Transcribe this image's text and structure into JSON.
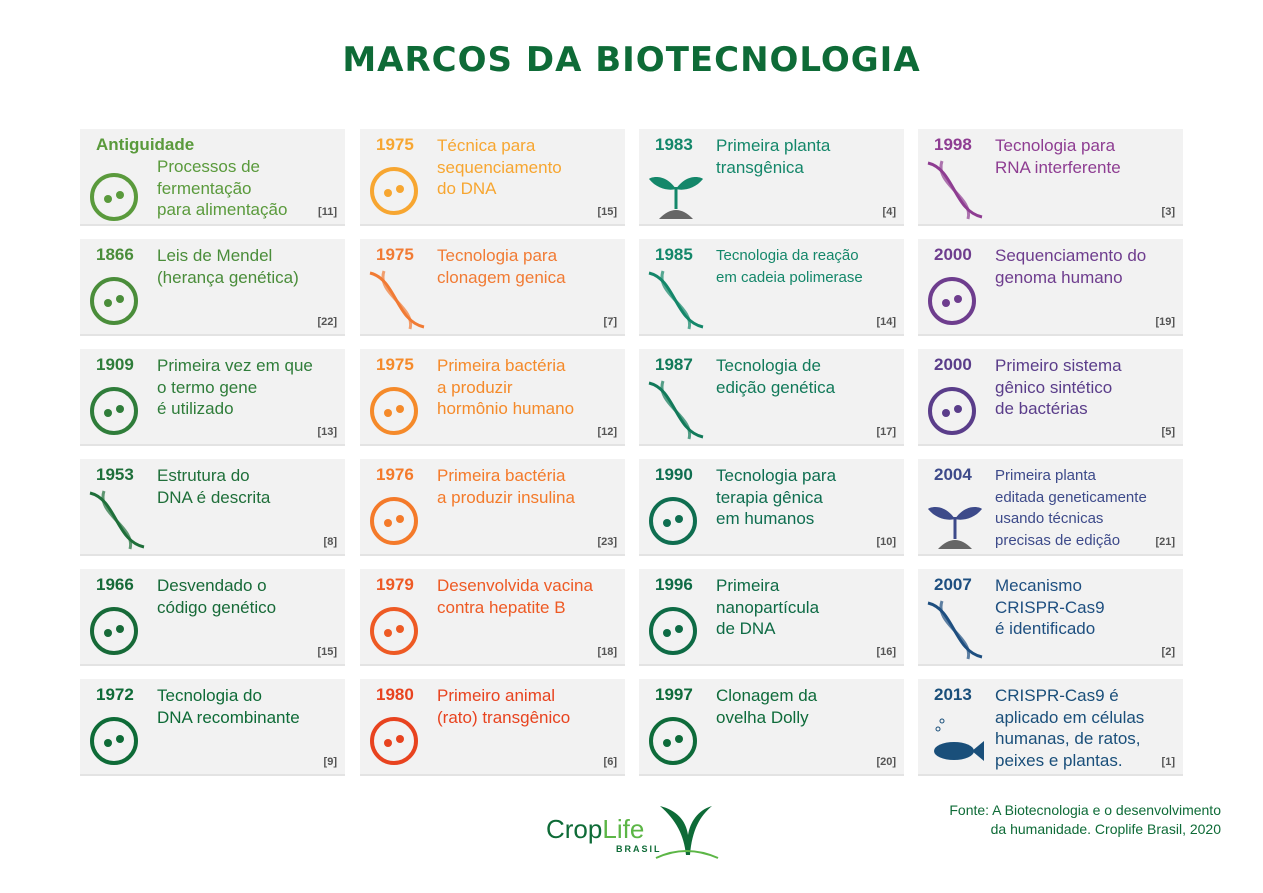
{
  "title": "MARCOS DA BIOTECNOLOGIA",
  "columns": [
    {
      "cards": [
        {
          "year": "Antiguidade",
          "desc": "Processos de\nfermentação\npara alimentação",
          "ref": "[11]",
          "color": "#5a9a3c",
          "icon": "fermentation-bowl-icon"
        },
        {
          "year": "1866",
          "desc": "Leis de Mendel\n(herança genética)",
          "ref": "[22]",
          "color": "#4a8d3a",
          "icon": "pea-pod-icon"
        },
        {
          "year": "1909",
          "desc": "Primeira vez em que\no termo gene\né utilizado",
          "ref": "[13]",
          "color": "#2f7d3a",
          "icon": "document-icon"
        },
        {
          "year": "1953",
          "desc": "Estrutura do\nDNA é descrita",
          "ref": "[8]",
          "color": "#1f6f3a",
          "icon": "dna-icon"
        },
        {
          "year": "1966",
          "desc": "Desvendado o\ncódigo genético",
          "ref": "[15]",
          "color": "#176a38",
          "icon": "genetic-code-icon"
        },
        {
          "year": "1972",
          "desc": "Tecnologia do\nDNA recombinante",
          "ref": "[9]",
          "color": "#0e6b37",
          "icon": "plasmid-icon"
        }
      ]
    },
    {
      "cards": [
        {
          "year": "1975",
          "desc": "Técnica para\nsequenciamento\ndo DNA",
          "ref": "[15]",
          "color": "#f7a631",
          "icon": "sequencing-peaks-icon"
        },
        {
          "year": "1975",
          "desc": "Tecnologia para\nclonagem genica",
          "ref": "[7]",
          "color": "#f17b34",
          "icon": "dna-cloning-icon"
        },
        {
          "year": "1975",
          "desc": "Primeira bactéria\na produzir\nhormônio humano",
          "ref": "[12]",
          "color": "#f58a2a",
          "icon": "bacteria-hormone-icon"
        },
        {
          "year": "1976",
          "desc": "Primeira bactéria\na produzir insulina",
          "ref": "[23]",
          "color": "#f47a2a",
          "icon": "bacteria-insulin-icon"
        },
        {
          "year": "1979",
          "desc": "Desenvolvida vacina\ncontra hepatite B",
          "ref": "[18]",
          "color": "#ee5a24",
          "icon": "syringe-icon"
        },
        {
          "year": "1980",
          "desc": "Primeiro animal\n(rato) transgênico",
          "ref": "[6]",
          "color": "#e8431f",
          "icon": "rat-icon"
        }
      ]
    },
    {
      "cards": [
        {
          "year": "1983",
          "desc": "Primeira planta\ntransgênica",
          "ref": "[4]",
          "color": "#14876a",
          "icon": "sprout-icon"
        },
        {
          "year": "1985",
          "desc": "Tecnologia da reação\nem cadeia polimerase",
          "ref": "[14]",
          "color": "#14876a",
          "icon": "pcr-dna-icon",
          "small": true
        },
        {
          "year": "1987",
          "desc": "Tecnologia de\nedição genética",
          "ref": "[17]",
          "color": "#127a5a",
          "icon": "dna-editing-icon"
        },
        {
          "year": "1990",
          "desc": "Tecnologia para\nterapia gênica\nem humanos",
          "ref": "[10]",
          "color": "#0f6e50",
          "icon": "gene-therapy-icon"
        },
        {
          "year": "1996",
          "desc": "Primeira\nnanopartícula\nde DNA",
          "ref": "[16]",
          "color": "#0e6b45",
          "icon": "nanoparticle-icon"
        },
        {
          "year": "1997",
          "desc": "Clonagem da\novelha Dolly",
          "ref": "[20]",
          "color": "#0e6b3a",
          "icon": "sheep-icon"
        }
      ]
    },
    {
      "cards": [
        {
          "year": "1998",
          "desc": "Tecnologia para\nRNA interferente",
          "ref": "[3]",
          "color": "#8e3d92",
          "icon": "rna-dna-icon"
        },
        {
          "year": "2000",
          "desc": "Sequenciamento do\ngenoma humano",
          "ref": "[19]",
          "color": "#6e3d8e",
          "icon": "human-genome-icon"
        },
        {
          "year": "2000",
          "desc": "Primeiro sistema\ngênico sintético\nde bactérias",
          "ref": "[5]",
          "color": "#5a3d8a",
          "icon": "synthetic-bacteria-icon"
        },
        {
          "year": "2004",
          "desc": "Primeira planta\neditada geneticamente\nusando técnicas\nprecisas de edição",
          "ref": "[21]",
          "color": "#3d4a8a",
          "icon": "sprout-icon",
          "small": true
        },
        {
          "year": "2007",
          "desc": "Mecanismo\nCRISPR-Cas9\né identificado",
          "ref": "[2]",
          "color": "#1e4f80",
          "icon": "crispr-dna-icon"
        },
        {
          "year": "2013",
          "desc": "CRISPR-Cas9 é\naplicado em células\nhumanas, de ratos,\npeixes e plantas.",
          "ref": "[1]",
          "color": "#1a4f7a",
          "icon": "fish-icon"
        }
      ]
    }
  ],
  "footer": {
    "source": "Fonte: A Biotecnologia e o desenvolvimento\nda humanidade. Croplife Brasil, 2020",
    "logo_crop": "Crop",
    "logo_life": "Life",
    "logo_sub": "BRASIL"
  }
}
